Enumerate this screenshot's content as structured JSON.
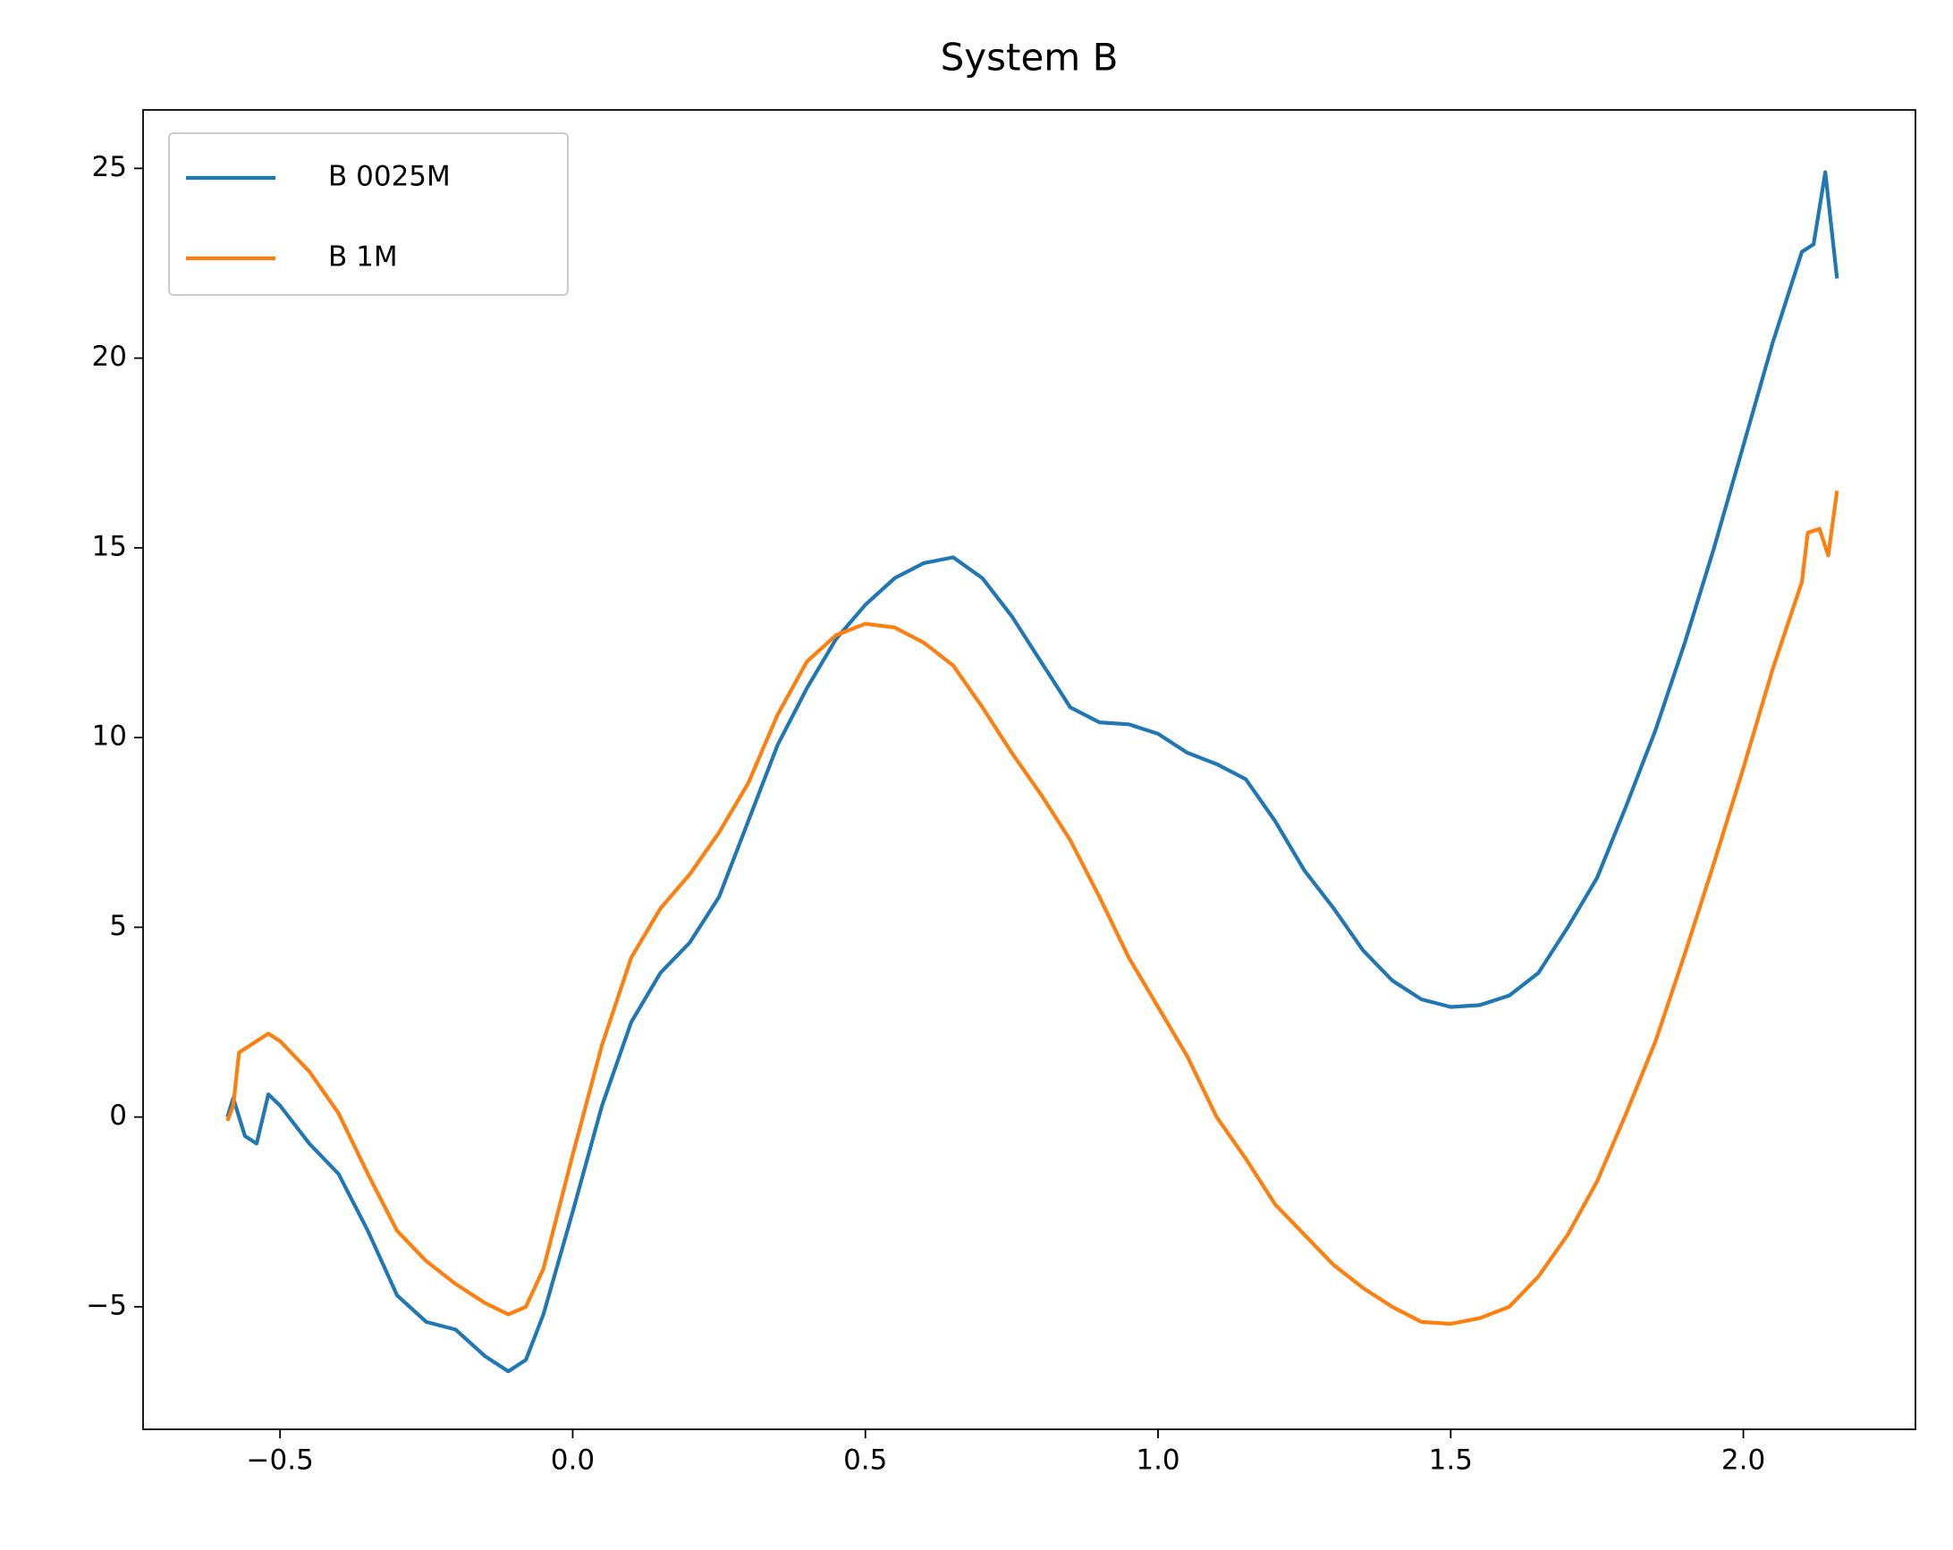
{
  "chart_data": {
    "type": "line",
    "title": "System B",
    "xlim": [
      -0.734,
      2.294
    ],
    "ylim": [
      -8.23,
      26.54
    ],
    "xticks": [
      {
        "value": -0.5,
        "label": "−0.5"
      },
      {
        "value": 0,
        "label": "0.0"
      },
      {
        "value": 0.5,
        "label": "0.5"
      },
      {
        "value": 1,
        "label": "1.0"
      },
      {
        "value": 1.5,
        "label": "1.5"
      },
      {
        "value": 2,
        "label": "2.0"
      }
    ],
    "yticks": [
      {
        "value": -5,
        "label": "−5"
      },
      0,
      5,
      10,
      15,
      20,
      25
    ],
    "grid": false,
    "legend": "upper left",
    "series": [
      {
        "name": "B 0025M",
        "color": "#1f77b4",
        "x": [
          -0.59,
          -0.58,
          -0.56,
          -0.54,
          -0.52,
          -0.5,
          -0.45,
          -0.4,
          -0.35,
          -0.3,
          -0.25,
          -0.2,
          -0.15,
          -0.11,
          -0.08,
          -0.05,
          0.0,
          0.05,
          0.1,
          0.15,
          0.2,
          0.25,
          0.3,
          0.35,
          0.4,
          0.45,
          0.5,
          0.55,
          0.6,
          0.65,
          0.7,
          0.75,
          0.8,
          0.85,
          0.9,
          0.95,
          1.0,
          1.05,
          1.1,
          1.15,
          1.2,
          1.25,
          1.3,
          1.35,
          1.4,
          1.45,
          1.5,
          1.55,
          1.6,
          1.65,
          1.7,
          1.75,
          1.8,
          1.85,
          1.9,
          1.95,
          2.0,
          2.05,
          2.1,
          2.12,
          2.14,
          2.16
        ],
        "values": [
          0,
          0.5,
          -0.5,
          -0.7,
          0.6,
          0.3,
          -0.7,
          -1.5,
          -3,
          -4.7,
          -5.4,
          -5.6,
          -6.3,
          -6.7,
          -6.4,
          -5.2,
          -2.5,
          0.3,
          2.5,
          3.8,
          4.6,
          5.8,
          7.8,
          9.8,
          11.3,
          12.6,
          13.5,
          14.2,
          14.6,
          14.75,
          14.2,
          13.2,
          12.0,
          10.8,
          10.4,
          10.35,
          10.1,
          9.6,
          9.3,
          8.9,
          7.8,
          6.5,
          5.5,
          4.4,
          3.6,
          3.1,
          2.9,
          2.95,
          3.2,
          3.8,
          5.0,
          6.3,
          8.2,
          10.2,
          12.5,
          15.0,
          17.7,
          20.4,
          22.8,
          23.0,
          24.9,
          22.1
        ]
      },
      {
        "name": "B 1M",
        "color": "#ff7f0e",
        "x": [
          -0.59,
          -0.58,
          -0.57,
          -0.54,
          -0.52,
          -0.5,
          -0.45,
          -0.4,
          -0.35,
          -0.3,
          -0.25,
          -0.2,
          -0.15,
          -0.11,
          -0.08,
          -0.05,
          0.0,
          0.05,
          0.1,
          0.15,
          0.2,
          0.25,
          0.3,
          0.35,
          0.4,
          0.45,
          0.5,
          0.55,
          0.6,
          0.65,
          0.7,
          0.75,
          0.8,
          0.85,
          0.9,
          0.95,
          1.0,
          1.05,
          1.1,
          1.15,
          1.2,
          1.25,
          1.3,
          1.35,
          1.4,
          1.45,
          1.5,
          1.55,
          1.6,
          1.65,
          1.7,
          1.75,
          1.8,
          1.85,
          1.9,
          1.95,
          2.0,
          2.05,
          2.1,
          2.11,
          2.13,
          2.145,
          2.16
        ],
        "values": [
          -0.1,
          0.3,
          1.7,
          2.0,
          2.2,
          2.0,
          1.2,
          0.1,
          -1.5,
          -3.0,
          -3.8,
          -4.4,
          -4.9,
          -5.2,
          -5.0,
          -4.0,
          -1.0,
          1.9,
          4.2,
          5.5,
          6.4,
          7.5,
          8.8,
          10.6,
          12.0,
          12.7,
          13.0,
          12.9,
          12.5,
          11.9,
          10.8,
          9.6,
          8.5,
          7.3,
          5.8,
          4.2,
          2.9,
          1.6,
          0.0,
          -1.1,
          -2.3,
          -3.1,
          -3.9,
          -4.5,
          -5.0,
          -5.4,
          -5.45,
          -5.3,
          -5.0,
          -4.2,
          -3.1,
          -1.7,
          0.1,
          2.0,
          4.3,
          6.7,
          9.2,
          11.8,
          14.1,
          15.4,
          15.5,
          14.8,
          16.5
        ]
      }
    ]
  }
}
